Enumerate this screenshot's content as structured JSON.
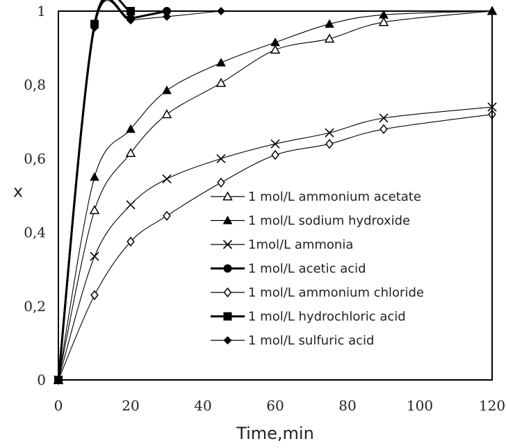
{
  "chart_data": {
    "type": "line",
    "title": "",
    "xlabel": "Time,min",
    "ylabel": "x",
    "xlim": [
      0,
      120
    ],
    "ylim": [
      0,
      1
    ],
    "x_ticks": [
      "0",
      "20",
      "40",
      "60",
      "80",
      "100",
      "120"
    ],
    "y_ticks": [
      "0",
      "0,2",
      "0,4",
      "0,6",
      "0,8",
      "1"
    ],
    "grid": false,
    "legend_position": "center-right",
    "series": [
      {
        "name": "1 mol/L ammonium acetate",
        "marker": "open-triangle",
        "bold": false,
        "x": [
          0,
          10,
          20,
          30,
          45,
          60,
          75,
          90,
          120
        ],
        "y": [
          0,
          0.46,
          0.615,
          0.72,
          0.805,
          0.895,
          0.925,
          0.97,
          1.0
        ]
      },
      {
        "name": "1 mol/L sodium hydroxide",
        "marker": "filled-triangle",
        "bold": false,
        "x": [
          0,
          10,
          20,
          30,
          45,
          60,
          75,
          90,
          120
        ],
        "y": [
          0,
          0.55,
          0.68,
          0.785,
          0.86,
          0.915,
          0.965,
          0.99,
          1.0
        ]
      },
      {
        "name": "1mol/L ammonia",
        "marker": "cross",
        "bold": false,
        "x": [
          0,
          10,
          20,
          30,
          45,
          60,
          75,
          90,
          120
        ],
        "y": [
          0,
          0.335,
          0.475,
          0.545,
          0.6,
          0.64,
          0.67,
          0.71,
          0.74
        ]
      },
      {
        "name": "1 mol/L acetic acid",
        "marker": "filled-circle",
        "bold": true,
        "x": [
          0,
          10,
          20,
          30
        ],
        "y": [
          0,
          0.96,
          0.98,
          1.0
        ]
      },
      {
        "name": "1 mol/L ammonium chloride",
        "marker": "open-diamond",
        "bold": false,
        "x": [
          0,
          10,
          20,
          30,
          45,
          60,
          75,
          90,
          120
        ],
        "y": [
          0,
          0.23,
          0.375,
          0.445,
          0.535,
          0.61,
          0.64,
          0.68,
          0.72
        ]
      },
      {
        "name": "1 mol/L hydrochloric acid",
        "marker": "filled-square",
        "bold": true,
        "x": [
          0,
          10,
          20
        ],
        "y": [
          0,
          0.965,
          1.0
        ]
      },
      {
        "name": "1 mol/L sulfuric acid",
        "marker": "filled-diamond",
        "bold": false,
        "x": [
          0,
          10,
          20,
          30,
          45
        ],
        "y": [
          0,
          0.955,
          0.975,
          0.985,
          1.0
        ]
      }
    ]
  }
}
